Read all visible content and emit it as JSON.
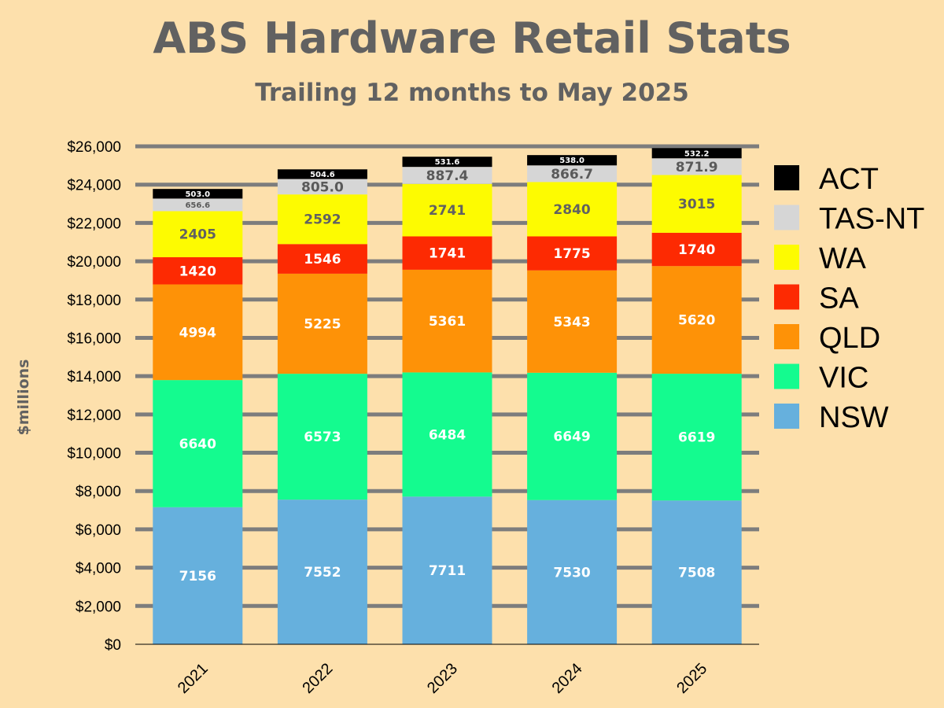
{
  "chart_data": {
    "type": "bar",
    "stacked": true,
    "title": "ABS Hardware Retail Stats",
    "subtitle": "Trailing 12 months to May 2025",
    "ylabel": "$millions",
    "xlabel": "",
    "ylim": [
      0,
      26000
    ],
    "ytick_step": 2000,
    "ytick_labels": [
      "$0",
      "$2,000",
      "$4,000",
      "$6,000",
      "$8,000",
      "$10,000",
      "$12,000",
      "$14,000",
      "$16,000",
      "$18,000",
      "$20,000",
      "$22,000",
      "$24,000",
      "$26,000"
    ],
    "grid": true,
    "legend_position": "right",
    "categories": [
      "2021",
      "2022",
      "2023",
      "2024",
      "2025"
    ],
    "series": [
      {
        "name": "NSW",
        "color": "#66b0dd",
        "values": [
          7156,
          7552,
          7711,
          7530,
          7508
        ],
        "labels": [
          "7156",
          "7552",
          "7711",
          "7530",
          "7508"
        ]
      },
      {
        "name": "VIC",
        "color": "#14fb8f",
        "values": [
          6640,
          6573,
          6484,
          6649,
          6619
        ],
        "labels": [
          "6640",
          "6573",
          "6484",
          "6649",
          "6619"
        ]
      },
      {
        "name": "QLD",
        "color": "#fe9207",
        "values": [
          4994,
          5225,
          5361,
          5343,
          5620
        ],
        "labels": [
          "4994",
          "5225",
          "5361",
          "5343",
          "5620"
        ]
      },
      {
        "name": "SA",
        "color": "#fd2a02",
        "values": [
          1420,
          1546,
          1741,
          1775,
          1740
        ],
        "labels": [
          "1420",
          "1546",
          "1741",
          "1775",
          "1740"
        ]
      },
      {
        "name": "WA",
        "color": "#fdfb01",
        "values": [
          2405,
          2592,
          2741,
          2840,
          3015
        ],
        "labels": [
          "2405",
          "2592",
          "2741",
          "2840",
          "3015"
        ]
      },
      {
        "name": "TAS-NT",
        "color": "#d6d6d6",
        "values": [
          656.6,
          805.0,
          887.4,
          866.7,
          871.9
        ],
        "labels": [
          "656.6",
          "805.0",
          "887.4",
          "866.7",
          "871.9"
        ]
      },
      {
        "name": "ACT",
        "color": "#000000",
        "values": [
          503.0,
          504.6,
          531.6,
          538.0,
          532.2
        ],
        "labels": [
          "503.0",
          "504.6",
          "531.6",
          "538.0",
          "532.2"
        ]
      }
    ]
  }
}
